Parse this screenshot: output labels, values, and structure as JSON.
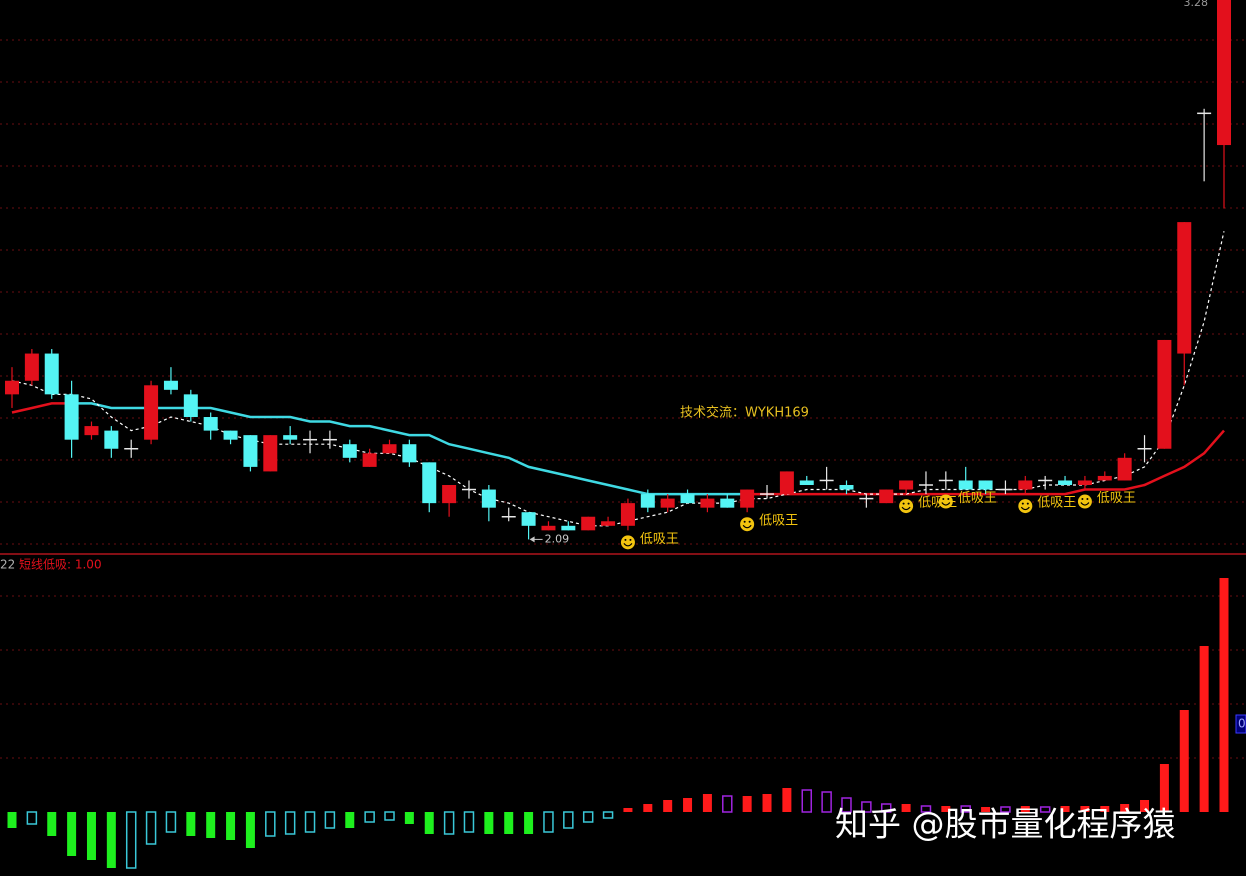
{
  "watermark": "知乎 @股市量化程序猿",
  "chart_data": [
    {
      "type": "candlestick",
      "open": [
        2.41,
        2.44,
        2.5,
        2.41,
        2.32,
        2.33,
        2.29,
        2.31,
        2.44,
        2.41,
        2.36,
        2.33,
        2.32,
        2.24,
        2.32,
        2.31,
        2.31,
        2.3,
        2.25,
        2.28,
        2.3,
        2.26,
        2.17,
        2.2,
        2.2,
        2.14,
        2.15,
        2.11,
        2.12,
        2.11,
        2.12,
        2.12,
        2.19,
        2.16,
        2.19,
        2.16,
        2.18,
        2.16,
        2.19,
        2.19,
        2.22,
        2.22,
        2.21,
        2.18,
        2.17,
        2.2,
        2.21,
        2.22,
        2.22,
        2.22,
        2.2,
        2.2,
        2.22,
        2.22,
        2.21,
        2.22,
        2.22,
        2.29,
        2.29,
        2.5,
        3.03,
        2.96
      ],
      "high": [
        2.47,
        2.51,
        2.51,
        2.44,
        2.35,
        2.34,
        2.31,
        2.44,
        2.47,
        2.42,
        2.37,
        2.33,
        2.32,
        2.32,
        2.34,
        2.33,
        2.33,
        2.31,
        2.29,
        2.31,
        2.31,
        2.26,
        2.21,
        2.22,
        2.21,
        2.16,
        2.15,
        2.13,
        2.13,
        2.14,
        2.14,
        2.18,
        2.2,
        2.19,
        2.2,
        2.19,
        2.19,
        2.2,
        2.21,
        2.24,
        2.23,
        2.25,
        2.22,
        2.19,
        2.2,
        2.22,
        2.24,
        2.24,
        2.25,
        2.22,
        2.22,
        2.23,
        2.23,
        2.23,
        2.23,
        2.24,
        2.28,
        2.32,
        2.53,
        2.79,
        3.04,
        3.28
      ],
      "low": [
        2.38,
        2.43,
        2.4,
        2.27,
        2.31,
        2.27,
        2.27,
        2.3,
        2.41,
        2.35,
        2.31,
        2.3,
        2.24,
        2.24,
        2.3,
        2.28,
        2.29,
        2.26,
        2.25,
        2.28,
        2.25,
        2.15,
        2.14,
        2.18,
        2.13,
        2.13,
        2.09,
        2.11,
        2.11,
        2.11,
        2.12,
        2.11,
        2.15,
        2.15,
        2.17,
        2.15,
        2.16,
        2.15,
        2.18,
        2.19,
        2.21,
        2.2,
        2.19,
        2.16,
        2.17,
        2.19,
        2.19,
        2.2,
        2.2,
        2.19,
        2.19,
        2.19,
        2.2,
        2.21,
        2.2,
        2.22,
        2.22,
        2.26,
        2.29,
        2.43,
        2.88,
        2.82
      ],
      "close": [
        2.44,
        2.5,
        2.41,
        2.31,
        2.34,
        2.29,
        2.29,
        2.43,
        2.42,
        2.36,
        2.33,
        2.31,
        2.25,
        2.32,
        2.31,
        2.31,
        2.31,
        2.27,
        2.28,
        2.3,
        2.26,
        2.17,
        2.21,
        2.2,
        2.16,
        2.14,
        2.12,
        2.12,
        2.11,
        2.14,
        2.13,
        2.17,
        2.16,
        2.18,
        2.17,
        2.18,
        2.16,
        2.2,
        2.19,
        2.24,
        2.21,
        2.22,
        2.2,
        2.18,
        2.2,
        2.22,
        2.21,
        2.22,
        2.2,
        2.2,
        2.2,
        2.22,
        2.22,
        2.21,
        2.22,
        2.23,
        2.27,
        2.29,
        2.53,
        2.79,
        3.03,
        3.28
      ],
      "up_color": "#e3101c",
      "down_color": "#54f4f4",
      "doji_color": "#e8e8e8",
      "ylim": [
        2.06,
        3.28
      ],
      "lines": [
        {
          "color": "#e3101c",
          "width": 2.5,
          "values": [
            2.37,
            2.38,
            2.39,
            2.39,
            null,
            null,
            null,
            null,
            null,
            null,
            null,
            null,
            null,
            null,
            null,
            null,
            null,
            null,
            null,
            null,
            null,
            null,
            null,
            null,
            null,
            null,
            null,
            null,
            null,
            null,
            null,
            null,
            null,
            null,
            null,
            null,
            null,
            2.19,
            2.19,
            2.19,
            2.19,
            2.19,
            2.19,
            2.19,
            2.19,
            2.19,
            2.19,
            2.19,
            2.19,
            2.19,
            2.19,
            2.19,
            2.19,
            2.19,
            2.2,
            2.2,
            2.2,
            2.21,
            2.23,
            2.25,
            2.28,
            2.33
          ]
        },
        {
          "color": "#3fd9e3",
          "width": 2.5,
          "values": [
            null,
            null,
            null,
            2.39,
            2.39,
            2.38,
            2.38,
            2.38,
            2.38,
            2.38,
            2.38,
            2.37,
            2.36,
            2.36,
            2.36,
            2.35,
            2.35,
            2.34,
            2.34,
            2.33,
            2.32,
            2.32,
            2.3,
            2.29,
            2.28,
            2.27,
            2.25,
            2.24,
            2.23,
            2.22,
            2.21,
            2.2,
            2.19,
            2.19,
            2.19,
            2.19,
            2.19,
            2.19,
            null,
            null,
            null,
            null,
            null,
            null,
            null,
            null,
            null,
            null,
            null,
            null,
            null,
            null,
            null,
            null,
            null,
            null,
            null,
            null,
            null,
            null,
            null,
            null
          ]
        },
        {
          "color": "#ffffff",
          "width": 1.2,
          "dash": true,
          "values": [
            2.44,
            2.43,
            2.41,
            2.41,
            2.4,
            2.36,
            2.33,
            2.34,
            2.36,
            2.35,
            2.34,
            2.32,
            2.31,
            2.3,
            2.3,
            2.3,
            2.3,
            2.29,
            2.28,
            2.28,
            2.27,
            2.25,
            2.23,
            2.2,
            2.18,
            2.17,
            2.15,
            2.14,
            2.13,
            2.12,
            2.12,
            2.13,
            2.14,
            2.15,
            2.17,
            2.17,
            2.17,
            2.18,
            2.18,
            2.19,
            2.2,
            2.2,
            2.2,
            2.19,
            2.19,
            2.19,
            2.2,
            2.2,
            2.2,
            2.2,
            2.2,
            2.2,
            2.21,
            2.21,
            2.21,
            2.22,
            2.23,
            2.25,
            2.31,
            2.43,
            2.57,
            2.77
          ]
        }
      ],
      "contact": "技术交流：WYKH169",
      "signals": [
        {
          "bar": 31,
          "text": "低吸王"
        },
        {
          "bar": 37,
          "text": "低吸王"
        },
        {
          "bar": 45,
          "text": "低吸王"
        },
        {
          "bar": 47,
          "text": "低吸王"
        },
        {
          "bar": 51,
          "text": "低吸王"
        },
        {
          "bar": 54,
          "text": "低吸王"
        }
      ],
      "signal_color": "#f2c40f"
    },
    {
      "type": "bar",
      "prefix": "22",
      "label": "短线低吸: 1.00",
      "right_marker": "0",
      "ylim": [
        -0.64,
        2.56
      ],
      "values": [
        -0.16,
        -0.12,
        -0.24,
        -0.44,
        -0.48,
        -0.56,
        -0.56,
        -0.32,
        -0.2,
        -0.24,
        -0.26,
        -0.28,
        -0.36,
        -0.24,
        -0.22,
        -0.2,
        -0.16,
        -0.16,
        -0.1,
        -0.08,
        -0.12,
        -0.22,
        -0.22,
        -0.2,
        -0.22,
        -0.22,
        -0.22,
        -0.2,
        -0.16,
        -0.1,
        -0.06,
        0.04,
        0.08,
        0.12,
        0.14,
        0.18,
        0.16,
        0.16,
        0.18,
        0.24,
        0.22,
        0.2,
        0.14,
        0.1,
        0.08,
        0.08,
        0.06,
        0.06,
        0.06,
        0.05,
        0.05,
        0.06,
        0.05,
        0.06,
        0.06,
        0.06,
        0.08,
        0.12,
        0.48,
        1.02,
        1.66,
        2.34
      ],
      "colors": [
        "#1ef01e",
        "#3ac8d8",
        "#1ef01e",
        "#1ef01e",
        "#1ef01e",
        "#1ef01e",
        "#3ac8d8",
        "#3ac8d8",
        "#3ac8d8",
        "#1ef01e",
        "#1ef01e",
        "#1ef01e",
        "#1ef01e",
        "#3ac8d8",
        "#3ac8d8",
        "#3ac8d8",
        "#3ac8d8",
        "#1ef01e",
        "#3ac8d8",
        "#3ac8d8",
        "#1ef01e",
        "#1ef01e",
        "#3ac8d8",
        "#3ac8d8",
        "#1ef01e",
        "#1ef01e",
        "#1ef01e",
        "#3ac8d8",
        "#3ac8d8",
        "#3ac8d8",
        "#3ac8d8",
        "#ff1a1a",
        "#ff1a1a",
        "#ff1a1a",
        "#ff1a1a",
        "#ff1a1a",
        "#a024e0",
        "#ff1a1a",
        "#ff1a1a",
        "#ff1a1a",
        "#a024e0",
        "#a024e0",
        "#a024e0",
        "#a024e0",
        "#a024e0",
        "#ff1a1a",
        "#a024e0",
        "#ff1a1a",
        "#a024e0",
        "#ff1a1a",
        "#a024e0",
        "#ff1a1a",
        "#a024e0",
        "#ff1a1a",
        "#ff1a1a",
        "#ff1a1a",
        "#ff1a1a",
        "#ff1a1a",
        "#ff1a1a",
        "#ff1a1a",
        "#ff1a1a",
        "#ff1a1a"
      ],
      "hollow_colors": [
        "#3ac8d8",
        "#a024e0"
      ]
    }
  ]
}
